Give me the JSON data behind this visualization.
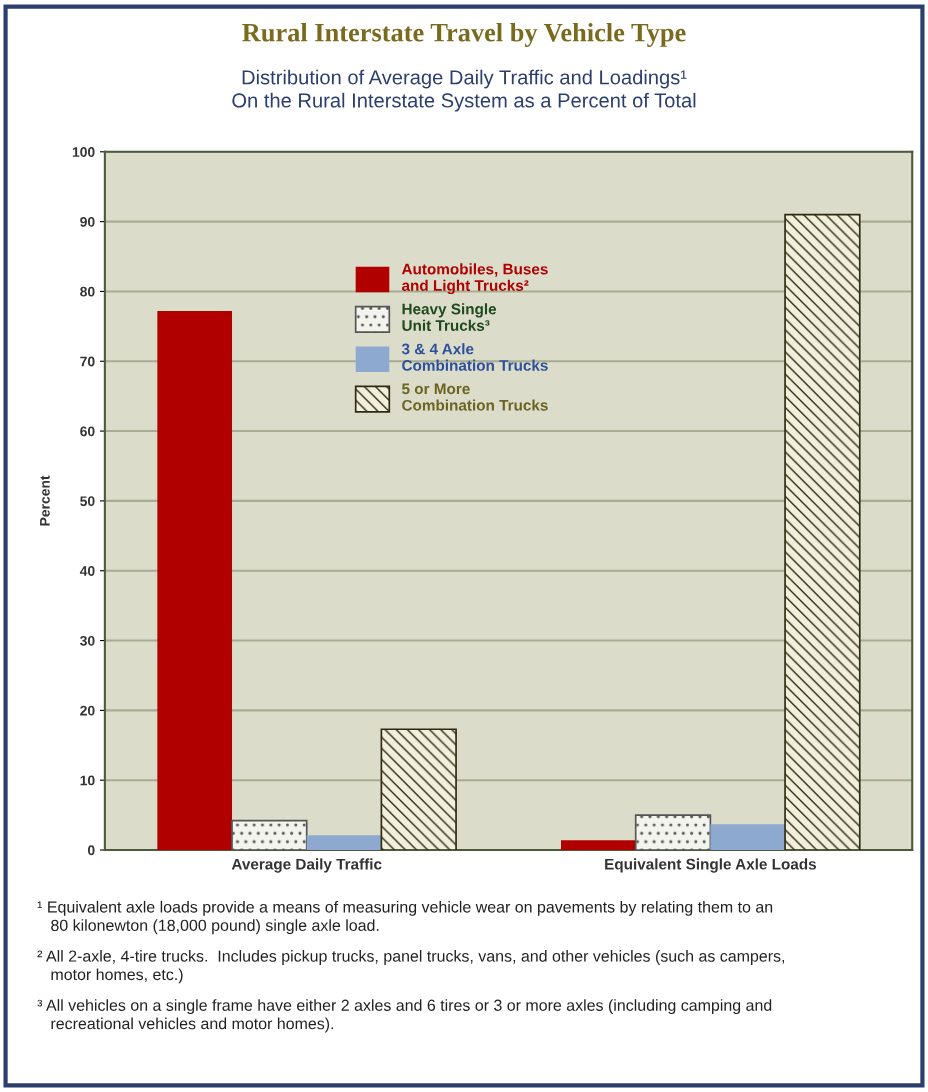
{
  "chart_data": {
    "type": "bar",
    "title": "Rural Interstate Travel by Vehicle Type",
    "subtitle": "Distribution of Average Daily Traffic and Loadings¹\nOn the Rural Interstate System as a Percent of Total",
    "ylabel": "Percent",
    "categories": [
      "Average Daily Traffic",
      "Equivalent Single Axle Loads"
    ],
    "series": [
      {
        "name": "Automobiles, Buses\nand Light Trucks²",
        "color": "#b00000",
        "values": [
          77.2,
          1.4
        ]
      },
      {
        "name": "Heavy Single\nUnit Trucks³",
        "color": "#555555",
        "values": [
          4.2,
          5.0
        ]
      },
      {
        "name": "3 & 4 Axle\nCombination Trucks",
        "color": "#8ea9d0",
        "values": [
          2.1,
          3.7
        ]
      },
      {
        "name": "5 or More\nCombination Trucks",
        "color": "#2f2a10",
        "values": [
          17.3,
          91.0
        ]
      }
    ],
    "ylim": [
      0,
      100
    ],
    "yticks": [
      0,
      10,
      20,
      30,
      40,
      50,
      60,
      70,
      80,
      90,
      100
    ],
    "grid": "y",
    "legend": "top",
    "annotations": [
      "¹ Equivalent axle loads provide a means of measuring vehicle wear on pavements by relating them to an\n   80 kilonewton (18,000 pound) single axle load.",
      "² All 2-axle, 4-tire trucks.  Includes pickup trucks, panel trucks, vans, and other vehicles (such as campers,\n   motor homes, etc.)",
      "³ All vehicles on a single frame have either 2 axles and 6 tires or 3 or more axles (including camping and\n   recreational vehicles and motor homes)."
    ]
  }
}
